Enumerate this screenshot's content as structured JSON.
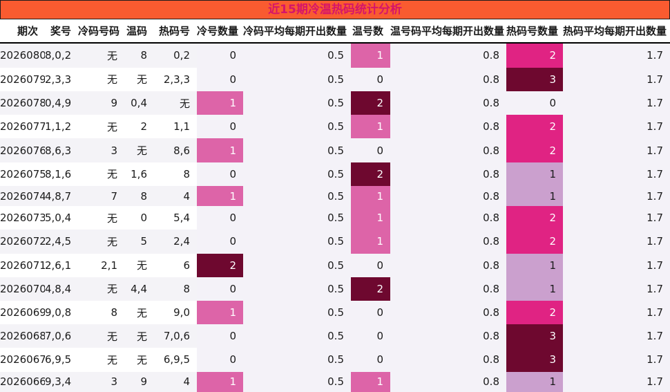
{
  "title": "近15期冷温热码统计分析",
  "colors": {
    "title_bg": "#f95b30",
    "title_text": "#d5156a",
    "stripe": "#f4f3f7",
    "right_zone_bg": "#f4f2f8",
    "white_row": "#ffffff",
    "highlight_pink": "#dd64a8",
    "highlight_hotpink": "#e02383",
    "highlight_maroon": "#6e082f",
    "highlight_lavender": "#cba0ce"
  },
  "chart_data": {
    "type": "table",
    "title": "近15期冷温热码统计分析",
    "columns": [
      "期次",
      "奖号",
      "冷码号码",
      "温码",
      "热码号",
      "冷号数量",
      "冷码平均每期开出数量",
      "温号数",
      "温号码平均每期开出数量",
      "热码号数量",
      "热码平均每期开出数量"
    ],
    "rows": [
      [
        "2026080",
        "8,0,2",
        "无",
        "8",
        "0,2",
        "0",
        "0.5",
        "1",
        "0.8",
        "2",
        "1.7"
      ],
      [
        "2026079",
        "2,3,3",
        "无",
        "无",
        "2,3,3",
        "0",
        "0.5",
        "0",
        "0.8",
        "3",
        "1.7"
      ],
      [
        "2026078",
        "0,4,9",
        "9",
        "0,4",
        "无",
        "1",
        "0.5",
        "2",
        "0.8",
        "0",
        "1.7"
      ],
      [
        "2026077",
        "1,1,2",
        "无",
        "2",
        "1,1",
        "0",
        "0.5",
        "1",
        "0.8",
        "2",
        "1.7"
      ],
      [
        "2026076",
        "8,6,3",
        "3",
        "无",
        "8,6",
        "1",
        "0.5",
        "0",
        "0.8",
        "2",
        "1.7"
      ],
      [
        "2026075",
        "8,1,6",
        "无",
        "1,6",
        "8",
        "0",
        "0.5",
        "2",
        "0.8",
        "1",
        "1.7"
      ],
      [
        "2026074",
        "4,8,7",
        "7",
        "8",
        "4",
        "1",
        "0.5",
        "1",
        "0.8",
        "1",
        "1.7"
      ],
      [
        "2026073",
        "5,0,4",
        "无",
        "0",
        "5,4",
        "0",
        "0.5",
        "1",
        "0.8",
        "2",
        "1.7"
      ],
      [
        "2026072",
        "2,4,5",
        "无",
        "5",
        "2,4",
        "0",
        "0.5",
        "1",
        "0.8",
        "2",
        "1.7"
      ],
      [
        "2026071",
        "2,6,1",
        "2,1",
        "无",
        "6",
        "2",
        "0.5",
        "0",
        "0.8",
        "1",
        "1.7"
      ],
      [
        "2026070",
        "4,8,4",
        "无",
        "4,4",
        "8",
        "0",
        "0.5",
        "2",
        "0.8",
        "1",
        "1.7"
      ],
      [
        "2026069",
        "9,0,8",
        "8",
        "无",
        "9,0",
        "1",
        "0.5",
        "0",
        "0.8",
        "2",
        "1.7"
      ],
      [
        "2026068",
        "7,0,6",
        "无",
        "无",
        "7,0,6",
        "0",
        "0.5",
        "0",
        "0.8",
        "3",
        "1.7"
      ],
      [
        "2026067",
        "6,9,5",
        "无",
        "无",
        "6,9,5",
        "0",
        "0.5",
        "0",
        "0.8",
        "3",
        "1.7"
      ],
      [
        "2026066",
        "9,3,4",
        "3",
        "9",
        "4",
        "1",
        "0.5",
        "1",
        "0.8",
        "1",
        "1.7"
      ]
    ],
    "heatmap": {
      "cold_count": {
        "1": {
          "bg": "#dd64a8",
          "fg": "#ffffff"
        },
        "2": {
          "bg": "#6e082f",
          "fg": "#ffffff"
        }
      },
      "warm_count": {
        "1": {
          "bg": "#dd64a8",
          "fg": "#ffffff"
        },
        "2": {
          "bg": "#6e082f",
          "fg": "#ffffff"
        }
      },
      "hot_count": {
        "1": {
          "bg": "#cba0ce",
          "fg": "#1a1a1a"
        },
        "2": {
          "bg": "#e02383",
          "fg": "#ffffff"
        },
        "3": {
          "bg": "#6e082f",
          "fg": "#ffffff"
        }
      }
    },
    "legend_position": "none",
    "grid": false
  }
}
